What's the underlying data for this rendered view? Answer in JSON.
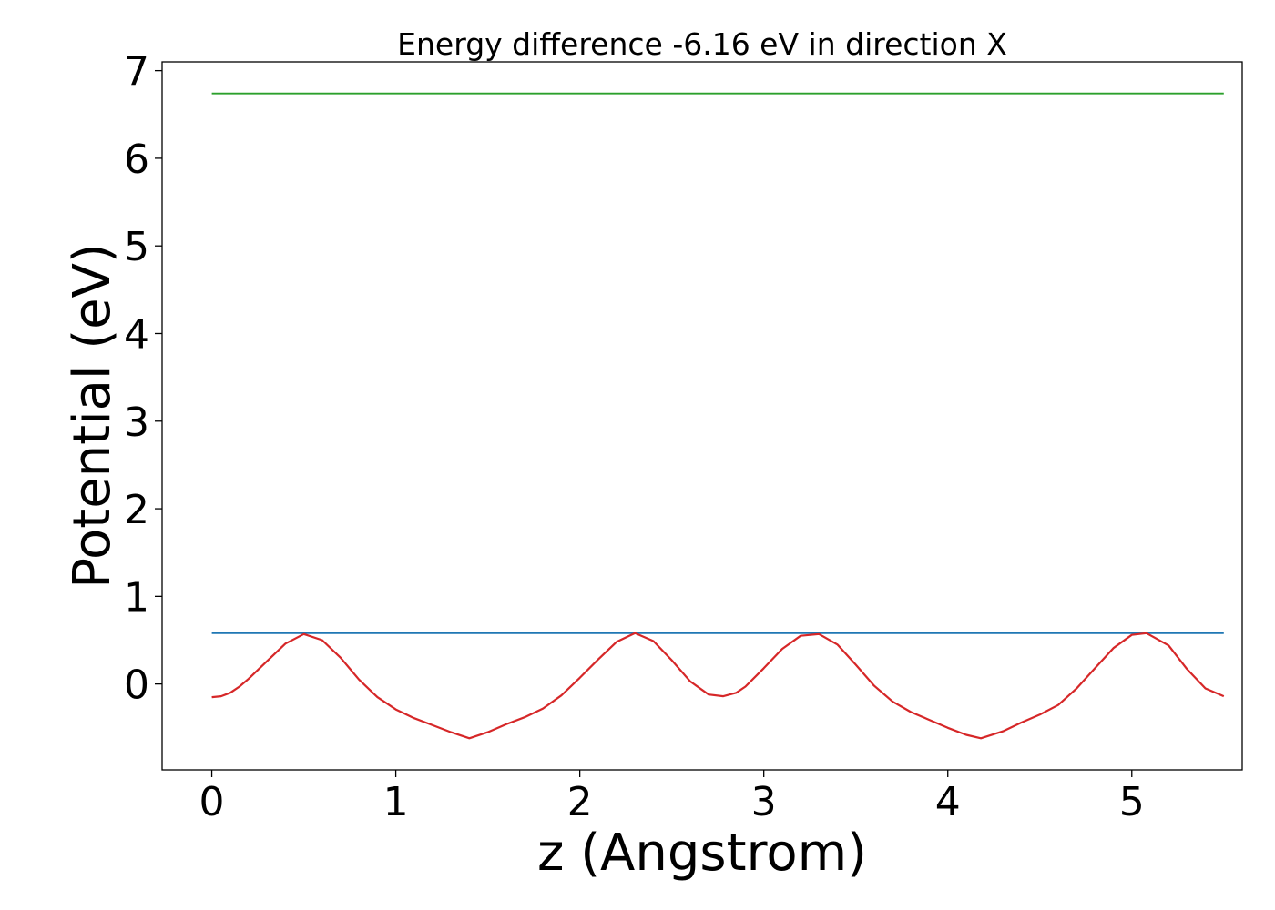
{
  "chart_data": {
    "type": "line",
    "title": "Energy difference -6.16 eV in direction X",
    "xlabel": "z (Angstrom)",
    "ylabel": "Potential (eV)",
    "xlim": [
      -0.27,
      5.6
    ],
    "ylim": [
      -0.98,
      7.1
    ],
    "xticks": [
      0,
      1,
      2,
      3,
      4,
      5
    ],
    "yticks": [
      0,
      1,
      2,
      3,
      4,
      5,
      6,
      7
    ],
    "grid": false,
    "series": [
      {
        "color": "#2ca02c",
        "x": [
          0,
          5.5
        ],
        "y": [
          6.74,
          6.74
        ]
      },
      {
        "color": "#1f77b4",
        "x": [
          0,
          5.5
        ],
        "y": [
          0.58,
          0.58
        ]
      },
      {
        "color": "#d62728",
        "x": [
          0.0,
          0.05,
          0.1,
          0.15,
          0.2,
          0.3,
          0.4,
          0.5,
          0.6,
          0.7,
          0.8,
          0.9,
          1.0,
          1.1,
          1.2,
          1.3,
          1.4,
          1.5,
          1.6,
          1.7,
          1.8,
          1.9,
          2.0,
          2.1,
          2.2,
          2.3,
          2.4,
          2.5,
          2.6,
          2.7,
          2.78,
          2.85,
          2.9,
          3.0,
          3.1,
          3.2,
          3.3,
          3.4,
          3.5,
          3.6,
          3.7,
          3.8,
          3.9,
          4.0,
          4.1,
          4.18,
          4.3,
          4.4,
          4.5,
          4.6,
          4.7,
          4.8,
          4.9,
          5.0,
          5.08,
          5.2,
          5.3,
          5.4,
          5.5
        ],
        "y": [
          -0.15,
          -0.14,
          -0.1,
          -0.03,
          0.06,
          0.26,
          0.46,
          0.57,
          0.5,
          0.3,
          0.05,
          -0.15,
          -0.29,
          -0.39,
          -0.47,
          -0.55,
          -0.62,
          -0.55,
          -0.46,
          -0.38,
          -0.28,
          -0.13,
          0.07,
          0.28,
          0.48,
          0.58,
          0.49,
          0.27,
          0.03,
          -0.12,
          -0.14,
          -0.1,
          -0.03,
          0.18,
          0.4,
          0.55,
          0.57,
          0.45,
          0.22,
          -0.02,
          -0.2,
          -0.32,
          -0.41,
          -0.5,
          -0.58,
          -0.62,
          -0.54,
          -0.44,
          -0.35,
          -0.24,
          -0.05,
          0.18,
          0.41,
          0.56,
          0.58,
          0.44,
          0.17,
          -0.05,
          -0.14
        ]
      }
    ]
  }
}
